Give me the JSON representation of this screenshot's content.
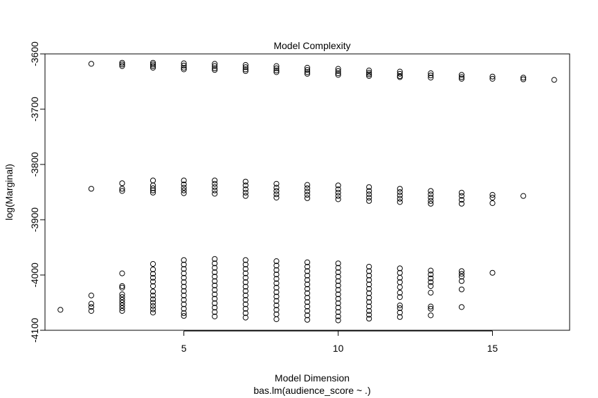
{
  "chart_data": {
    "type": "scatter",
    "title": "Model Complexity",
    "xlabel": "Model Dimension",
    "sub": "bas.lm(audience_score ~ .)",
    "ylabel": "log(Marginal)",
    "xlim": [
      0.5,
      17.5
    ],
    "ylim": [
      -4100,
      -3600
    ],
    "xticks": [
      5,
      10,
      15
    ],
    "yticks": [
      -4100,
      -4000,
      -3900,
      -3800,
      -3700,
      -3600
    ],
    "xtick_labels": [
      "5",
      "10",
      "15"
    ],
    "ytick_labels": [
      "-4100",
      "-4000",
      "-3900",
      "-3800",
      "-3700",
      "-3600"
    ],
    "grid": false,
    "marker": "open-circle",
    "marker_color": "#000000",
    "points": [
      {
        "x": 1,
        "y": -4063
      },
      {
        "x": 2,
        "y": -3618
      },
      {
        "x": 2,
        "y": -3844
      },
      {
        "x": 2,
        "y": -4037
      },
      {
        "x": 2,
        "y": -4052
      },
      {
        "x": 2,
        "y": -4058
      },
      {
        "x": 2,
        "y": -4065
      },
      {
        "x": 3,
        "y": -3616
      },
      {
        "x": 3,
        "y": -3619
      },
      {
        "x": 3,
        "y": -3622
      },
      {
        "x": 3,
        "y": -3834
      },
      {
        "x": 3,
        "y": -3844
      },
      {
        "x": 3,
        "y": -3848
      },
      {
        "x": 3,
        "y": -3997
      },
      {
        "x": 3,
        "y": -4020
      },
      {
        "x": 3,
        "y": -4023
      },
      {
        "x": 3,
        "y": -4035
      },
      {
        "x": 3,
        "y": -4040
      },
      {
        "x": 3,
        "y": -4045
      },
      {
        "x": 3,
        "y": -4050
      },
      {
        "x": 3,
        "y": -4055
      },
      {
        "x": 3,
        "y": -4060
      },
      {
        "x": 3,
        "y": -4065
      },
      {
        "x": 4,
        "y": -3616
      },
      {
        "x": 4,
        "y": -3619
      },
      {
        "x": 4,
        "y": -3622
      },
      {
        "x": 4,
        "y": -3625
      },
      {
        "x": 4,
        "y": -3829
      },
      {
        "x": 4,
        "y": -3838
      },
      {
        "x": 4,
        "y": -3843
      },
      {
        "x": 4,
        "y": -3847
      },
      {
        "x": 4,
        "y": -3851
      },
      {
        "x": 4,
        "y": -3980
      },
      {
        "x": 4,
        "y": -3990
      },
      {
        "x": 4,
        "y": -3998
      },
      {
        "x": 4,
        "y": -4005
      },
      {
        "x": 4,
        "y": -4012
      },
      {
        "x": 4,
        "y": -4020
      },
      {
        "x": 4,
        "y": -4030
      },
      {
        "x": 4,
        "y": -4037
      },
      {
        "x": 4,
        "y": -4044
      },
      {
        "x": 4,
        "y": -4050
      },
      {
        "x": 4,
        "y": -4056
      },
      {
        "x": 4,
        "y": -4062
      },
      {
        "x": 4,
        "y": -4068
      },
      {
        "x": 5,
        "y": -3617
      },
      {
        "x": 5,
        "y": -3621
      },
      {
        "x": 5,
        "y": -3625
      },
      {
        "x": 5,
        "y": -3628
      },
      {
        "x": 5,
        "y": -3829
      },
      {
        "x": 5,
        "y": -3836
      },
      {
        "x": 5,
        "y": -3842
      },
      {
        "x": 5,
        "y": -3847
      },
      {
        "x": 5,
        "y": -3852
      },
      {
        "x": 5,
        "y": -3973
      },
      {
        "x": 5,
        "y": -3981
      },
      {
        "x": 5,
        "y": -3989
      },
      {
        "x": 5,
        "y": -3997
      },
      {
        "x": 5,
        "y": -4005
      },
      {
        "x": 5,
        "y": -4013
      },
      {
        "x": 5,
        "y": -4021
      },
      {
        "x": 5,
        "y": -4029
      },
      {
        "x": 5,
        "y": -4037
      },
      {
        "x": 5,
        "y": -4045
      },
      {
        "x": 5,
        "y": -4053
      },
      {
        "x": 5,
        "y": -4061
      },
      {
        "x": 5,
        "y": -4069
      },
      {
        "x": 5,
        "y": -4074
      },
      {
        "x": 6,
        "y": -3618
      },
      {
        "x": 6,
        "y": -3622
      },
      {
        "x": 6,
        "y": -3626
      },
      {
        "x": 6,
        "y": -3629
      },
      {
        "x": 6,
        "y": -3829
      },
      {
        "x": 6,
        "y": -3835
      },
      {
        "x": 6,
        "y": -3841
      },
      {
        "x": 6,
        "y": -3847
      },
      {
        "x": 6,
        "y": -3853
      },
      {
        "x": 6,
        "y": -3971
      },
      {
        "x": 6,
        "y": -3979
      },
      {
        "x": 6,
        "y": -3987
      },
      {
        "x": 6,
        "y": -3995
      },
      {
        "x": 6,
        "y": -4003
      },
      {
        "x": 6,
        "y": -4011
      },
      {
        "x": 6,
        "y": -4019
      },
      {
        "x": 6,
        "y": -4027
      },
      {
        "x": 6,
        "y": -4035
      },
      {
        "x": 6,
        "y": -4043
      },
      {
        "x": 6,
        "y": -4051
      },
      {
        "x": 6,
        "y": -4059
      },
      {
        "x": 6,
        "y": -4067
      },
      {
        "x": 6,
        "y": -4075
      },
      {
        "x": 7,
        "y": -3620
      },
      {
        "x": 7,
        "y": -3624
      },
      {
        "x": 7,
        "y": -3628
      },
      {
        "x": 7,
        "y": -3631
      },
      {
        "x": 7,
        "y": -3831
      },
      {
        "x": 7,
        "y": -3838
      },
      {
        "x": 7,
        "y": -3845
      },
      {
        "x": 7,
        "y": -3851
      },
      {
        "x": 7,
        "y": -3857
      },
      {
        "x": 7,
        "y": -3973
      },
      {
        "x": 7,
        "y": -3981
      },
      {
        "x": 7,
        "y": -3989
      },
      {
        "x": 7,
        "y": -3997
      },
      {
        "x": 7,
        "y": -4005
      },
      {
        "x": 7,
        "y": -4013
      },
      {
        "x": 7,
        "y": -4021
      },
      {
        "x": 7,
        "y": -4029
      },
      {
        "x": 7,
        "y": -4037
      },
      {
        "x": 7,
        "y": -4045
      },
      {
        "x": 7,
        "y": -4053
      },
      {
        "x": 7,
        "y": -4061
      },
      {
        "x": 7,
        "y": -4069
      },
      {
        "x": 7,
        "y": -4077
      },
      {
        "x": 8,
        "y": -3622
      },
      {
        "x": 8,
        "y": -3626
      },
      {
        "x": 8,
        "y": -3630
      },
      {
        "x": 8,
        "y": -3633
      },
      {
        "x": 8,
        "y": -3835
      },
      {
        "x": 8,
        "y": -3842
      },
      {
        "x": 8,
        "y": -3848
      },
      {
        "x": 8,
        "y": -3854
      },
      {
        "x": 8,
        "y": -3860
      },
      {
        "x": 8,
        "y": -3975
      },
      {
        "x": 8,
        "y": -3983
      },
      {
        "x": 8,
        "y": -3991
      },
      {
        "x": 8,
        "y": -3999
      },
      {
        "x": 8,
        "y": -4007
      },
      {
        "x": 8,
        "y": -4015
      },
      {
        "x": 8,
        "y": -4023
      },
      {
        "x": 8,
        "y": -4031
      },
      {
        "x": 8,
        "y": -4039
      },
      {
        "x": 8,
        "y": -4047
      },
      {
        "x": 8,
        "y": -4055
      },
      {
        "x": 8,
        "y": -4063
      },
      {
        "x": 8,
        "y": -4071
      },
      {
        "x": 8,
        "y": -4080
      },
      {
        "x": 9,
        "y": -3625
      },
      {
        "x": 9,
        "y": -3629
      },
      {
        "x": 9,
        "y": -3633
      },
      {
        "x": 9,
        "y": -3636
      },
      {
        "x": 9,
        "y": -3837
      },
      {
        "x": 9,
        "y": -3843
      },
      {
        "x": 9,
        "y": -3849
      },
      {
        "x": 9,
        "y": -3855
      },
      {
        "x": 9,
        "y": -3861
      },
      {
        "x": 9,
        "y": -3977
      },
      {
        "x": 9,
        "y": -3985
      },
      {
        "x": 9,
        "y": -3993
      },
      {
        "x": 9,
        "y": -4001
      },
      {
        "x": 9,
        "y": -4009
      },
      {
        "x": 9,
        "y": -4017
      },
      {
        "x": 9,
        "y": -4025
      },
      {
        "x": 9,
        "y": -4033
      },
      {
        "x": 9,
        "y": -4041
      },
      {
        "x": 9,
        "y": -4049
      },
      {
        "x": 9,
        "y": -4057
      },
      {
        "x": 9,
        "y": -4065
      },
      {
        "x": 9,
        "y": -4073
      },
      {
        "x": 9,
        "y": -4081
      },
      {
        "x": 10,
        "y": -3627
      },
      {
        "x": 10,
        "y": -3631
      },
      {
        "x": 10,
        "y": -3635
      },
      {
        "x": 10,
        "y": -3638
      },
      {
        "x": 10,
        "y": -3838
      },
      {
        "x": 10,
        "y": -3845
      },
      {
        "x": 10,
        "y": -3851
      },
      {
        "x": 10,
        "y": -3857
      },
      {
        "x": 10,
        "y": -3863
      },
      {
        "x": 10,
        "y": -3979
      },
      {
        "x": 10,
        "y": -3987
      },
      {
        "x": 10,
        "y": -3995
      },
      {
        "x": 10,
        "y": -4003
      },
      {
        "x": 10,
        "y": -4011
      },
      {
        "x": 10,
        "y": -4019
      },
      {
        "x": 10,
        "y": -4027
      },
      {
        "x": 10,
        "y": -4035
      },
      {
        "x": 10,
        "y": -4043
      },
      {
        "x": 10,
        "y": -4051
      },
      {
        "x": 10,
        "y": -4059
      },
      {
        "x": 10,
        "y": -4067
      },
      {
        "x": 10,
        "y": -4075
      },
      {
        "x": 10,
        "y": -4082
      },
      {
        "x": 11,
        "y": -3630
      },
      {
        "x": 11,
        "y": -3634
      },
      {
        "x": 11,
        "y": -3637
      },
      {
        "x": 11,
        "y": -3640
      },
      {
        "x": 11,
        "y": -3841
      },
      {
        "x": 11,
        "y": -3848
      },
      {
        "x": 11,
        "y": -3854
      },
      {
        "x": 11,
        "y": -3860
      },
      {
        "x": 11,
        "y": -3866
      },
      {
        "x": 11,
        "y": -3985
      },
      {
        "x": 11,
        "y": -3993
      },
      {
        "x": 11,
        "y": -4001
      },
      {
        "x": 11,
        "y": -4009
      },
      {
        "x": 11,
        "y": -4017
      },
      {
        "x": 11,
        "y": -4025
      },
      {
        "x": 11,
        "y": -4033
      },
      {
        "x": 11,
        "y": -4041
      },
      {
        "x": 11,
        "y": -4049
      },
      {
        "x": 11,
        "y": -4057
      },
      {
        "x": 11,
        "y": -4065
      },
      {
        "x": 11,
        "y": -4072
      },
      {
        "x": 11,
        "y": -4079
      },
      {
        "x": 12,
        "y": -3632
      },
      {
        "x": 12,
        "y": -3636
      },
      {
        "x": 12,
        "y": -3640
      },
      {
        "x": 12,
        "y": -3642
      },
      {
        "x": 12,
        "y": -3844
      },
      {
        "x": 12,
        "y": -3850
      },
      {
        "x": 12,
        "y": -3856
      },
      {
        "x": 12,
        "y": -3862
      },
      {
        "x": 12,
        "y": -3868
      },
      {
        "x": 12,
        "y": -3988
      },
      {
        "x": 12,
        "y": -3996
      },
      {
        "x": 12,
        "y": -4005
      },
      {
        "x": 12,
        "y": -4013
      },
      {
        "x": 12,
        "y": -4022
      },
      {
        "x": 12,
        "y": -4032
      },
      {
        "x": 12,
        "y": -4040
      },
      {
        "x": 12,
        "y": -4055
      },
      {
        "x": 12,
        "y": -4060
      },
      {
        "x": 12,
        "y": -4068
      },
      {
        "x": 12,
        "y": -4076
      },
      {
        "x": 13,
        "y": -3635
      },
      {
        "x": 13,
        "y": -3639
      },
      {
        "x": 13,
        "y": -3643
      },
      {
        "x": 13,
        "y": -3848
      },
      {
        "x": 13,
        "y": -3854
      },
      {
        "x": 13,
        "y": -3860
      },
      {
        "x": 13,
        "y": -3866
      },
      {
        "x": 13,
        "y": -3871
      },
      {
        "x": 13,
        "y": -3992
      },
      {
        "x": 13,
        "y": -3999
      },
      {
        "x": 13,
        "y": -4006
      },
      {
        "x": 13,
        "y": -4013
      },
      {
        "x": 13,
        "y": -4020
      },
      {
        "x": 13,
        "y": -4032
      },
      {
        "x": 13,
        "y": -4057
      },
      {
        "x": 13,
        "y": -4061
      },
      {
        "x": 13,
        "y": -4073
      },
      {
        "x": 14,
        "y": -3638
      },
      {
        "x": 14,
        "y": -3642
      },
      {
        "x": 14,
        "y": -3645
      },
      {
        "x": 14,
        "y": -3851
      },
      {
        "x": 14,
        "y": -3857
      },
      {
        "x": 14,
        "y": -3864
      },
      {
        "x": 14,
        "y": -3871
      },
      {
        "x": 14,
        "y": -3993
      },
      {
        "x": 14,
        "y": -3998
      },
      {
        "x": 14,
        "y": -4003
      },
      {
        "x": 14,
        "y": -4011
      },
      {
        "x": 14,
        "y": -4026
      },
      {
        "x": 14,
        "y": -4058
      },
      {
        "x": 15,
        "y": -3641
      },
      {
        "x": 15,
        "y": -3645
      },
      {
        "x": 15,
        "y": -3855
      },
      {
        "x": 15,
        "y": -3860
      },
      {
        "x": 15,
        "y": -3870
      },
      {
        "x": 15,
        "y": -3996
      },
      {
        "x": 16,
        "y": -3643
      },
      {
        "x": 16,
        "y": -3646
      },
      {
        "x": 16,
        "y": -3857
      },
      {
        "x": 17,
        "y": -3647
      }
    ]
  }
}
